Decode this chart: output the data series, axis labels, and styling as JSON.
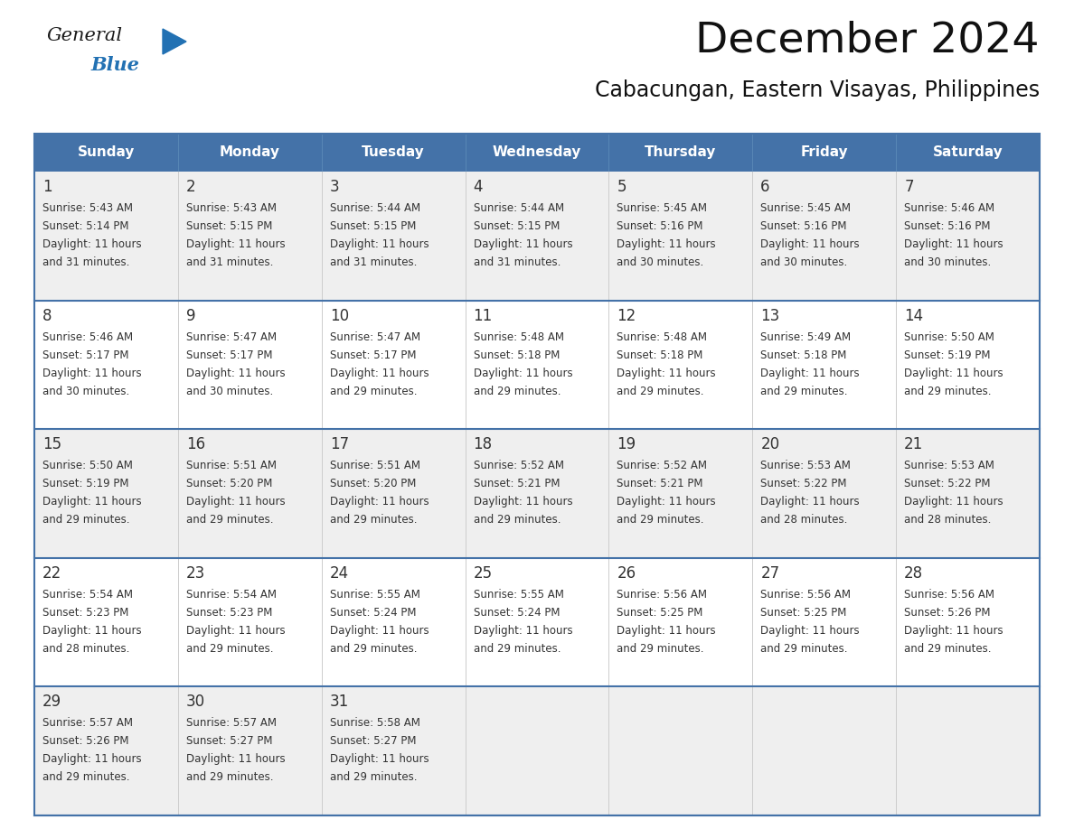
{
  "title": "December 2024",
  "subtitle": "Cabacungan, Eastern Visayas, Philippines",
  "header_bg_color": "#4472A8",
  "header_text_color": "#FFFFFF",
  "row_bg_even": "#EFEFEF",
  "row_bg_odd": "#FFFFFF",
  "border_color": "#4472A8",
  "sep_color": "#4472A8",
  "day_headers": [
    "Sunday",
    "Monday",
    "Tuesday",
    "Wednesday",
    "Thursday",
    "Friday",
    "Saturday"
  ],
  "calendar": [
    [
      {
        "day": "1",
        "sunrise": "5:43 AM",
        "sunset": "5:14 PM",
        "daylight": "11 hours",
        "daylight2": "and 31 minutes."
      },
      {
        "day": "2",
        "sunrise": "5:43 AM",
        "sunset": "5:15 PM",
        "daylight": "11 hours",
        "daylight2": "and 31 minutes."
      },
      {
        "day": "3",
        "sunrise": "5:44 AM",
        "sunset": "5:15 PM",
        "daylight": "11 hours",
        "daylight2": "and 31 minutes."
      },
      {
        "day": "4",
        "sunrise": "5:44 AM",
        "sunset": "5:15 PM",
        "daylight": "11 hours",
        "daylight2": "and 31 minutes."
      },
      {
        "day": "5",
        "sunrise": "5:45 AM",
        "sunset": "5:16 PM",
        "daylight": "11 hours",
        "daylight2": "and 30 minutes."
      },
      {
        "day": "6",
        "sunrise": "5:45 AM",
        "sunset": "5:16 PM",
        "daylight": "11 hours",
        "daylight2": "and 30 minutes."
      },
      {
        "day": "7",
        "sunrise": "5:46 AM",
        "sunset": "5:16 PM",
        "daylight": "11 hours",
        "daylight2": "and 30 minutes."
      }
    ],
    [
      {
        "day": "8",
        "sunrise": "5:46 AM",
        "sunset": "5:17 PM",
        "daylight": "11 hours",
        "daylight2": "and 30 minutes."
      },
      {
        "day": "9",
        "sunrise": "5:47 AM",
        "sunset": "5:17 PM",
        "daylight": "11 hours",
        "daylight2": "and 30 minutes."
      },
      {
        "day": "10",
        "sunrise": "5:47 AM",
        "sunset": "5:17 PM",
        "daylight": "11 hours",
        "daylight2": "and 29 minutes."
      },
      {
        "day": "11",
        "sunrise": "5:48 AM",
        "sunset": "5:18 PM",
        "daylight": "11 hours",
        "daylight2": "and 29 minutes."
      },
      {
        "day": "12",
        "sunrise": "5:48 AM",
        "sunset": "5:18 PM",
        "daylight": "11 hours",
        "daylight2": "and 29 minutes."
      },
      {
        "day": "13",
        "sunrise": "5:49 AM",
        "sunset": "5:18 PM",
        "daylight": "11 hours",
        "daylight2": "and 29 minutes."
      },
      {
        "day": "14",
        "sunrise": "5:50 AM",
        "sunset": "5:19 PM",
        "daylight": "11 hours",
        "daylight2": "and 29 minutes."
      }
    ],
    [
      {
        "day": "15",
        "sunrise": "5:50 AM",
        "sunset": "5:19 PM",
        "daylight": "11 hours",
        "daylight2": "and 29 minutes."
      },
      {
        "day": "16",
        "sunrise": "5:51 AM",
        "sunset": "5:20 PM",
        "daylight": "11 hours",
        "daylight2": "and 29 minutes."
      },
      {
        "day": "17",
        "sunrise": "5:51 AM",
        "sunset": "5:20 PM",
        "daylight": "11 hours",
        "daylight2": "and 29 minutes."
      },
      {
        "day": "18",
        "sunrise": "5:52 AM",
        "sunset": "5:21 PM",
        "daylight": "11 hours",
        "daylight2": "and 29 minutes."
      },
      {
        "day": "19",
        "sunrise": "5:52 AM",
        "sunset": "5:21 PM",
        "daylight": "11 hours",
        "daylight2": "and 29 minutes."
      },
      {
        "day": "20",
        "sunrise": "5:53 AM",
        "sunset": "5:22 PM",
        "daylight": "11 hours",
        "daylight2": "and 28 minutes."
      },
      {
        "day": "21",
        "sunrise": "5:53 AM",
        "sunset": "5:22 PM",
        "daylight": "11 hours",
        "daylight2": "and 28 minutes."
      }
    ],
    [
      {
        "day": "22",
        "sunrise": "5:54 AM",
        "sunset": "5:23 PM",
        "daylight": "11 hours",
        "daylight2": "and 28 minutes."
      },
      {
        "day": "23",
        "sunrise": "5:54 AM",
        "sunset": "5:23 PM",
        "daylight": "11 hours",
        "daylight2": "and 29 minutes."
      },
      {
        "day": "24",
        "sunrise": "5:55 AM",
        "sunset": "5:24 PM",
        "daylight": "11 hours",
        "daylight2": "and 29 minutes."
      },
      {
        "day": "25",
        "sunrise": "5:55 AM",
        "sunset": "5:24 PM",
        "daylight": "11 hours",
        "daylight2": "and 29 minutes."
      },
      {
        "day": "26",
        "sunrise": "5:56 AM",
        "sunset": "5:25 PM",
        "daylight": "11 hours",
        "daylight2": "and 29 minutes."
      },
      {
        "day": "27",
        "sunrise": "5:56 AM",
        "sunset": "5:25 PM",
        "daylight": "11 hours",
        "daylight2": "and 29 minutes."
      },
      {
        "day": "28",
        "sunrise": "5:56 AM",
        "sunset": "5:26 PM",
        "daylight": "11 hours",
        "daylight2": "and 29 minutes."
      }
    ],
    [
      {
        "day": "29",
        "sunrise": "5:57 AM",
        "sunset": "5:26 PM",
        "daylight": "11 hours",
        "daylight2": "and 29 minutes."
      },
      {
        "day": "30",
        "sunrise": "5:57 AM",
        "sunset": "5:27 PM",
        "daylight": "11 hours",
        "daylight2": "and 29 minutes."
      },
      {
        "day": "31",
        "sunrise": "5:58 AM",
        "sunset": "5:27 PM",
        "daylight": "11 hours",
        "daylight2": "and 29 minutes."
      },
      null,
      null,
      null,
      null
    ]
  ],
  "logo_general_color": "#1a1a1a",
  "logo_blue_color": "#2271B3",
  "logo_triangle_color": "#2271B3",
  "text_color": "#333333",
  "title_fontsize": 34,
  "subtitle_fontsize": 17,
  "header_fontsize": 11,
  "day_num_fontsize": 12,
  "cell_text_fontsize": 8.5
}
